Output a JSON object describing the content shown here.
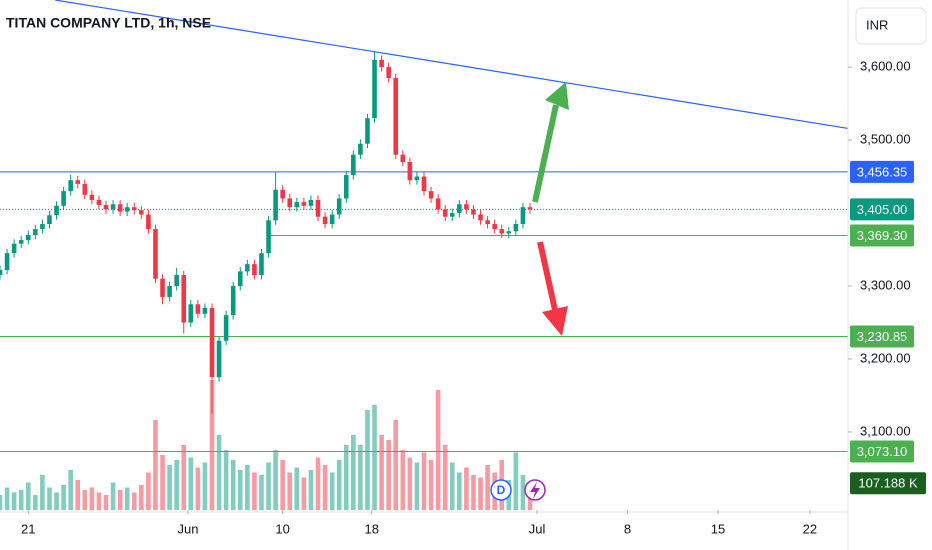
{
  "chart_data": {
    "type": "candlestick",
    "title": "TITAN COMPANY LTD, 1h, NSE",
    "currency": "INR",
    "up_color": "#089981",
    "down_color": "#f23645",
    "xlim": [
      0,
      120
    ],
    "xticks": [
      {
        "value": 4,
        "label": "21"
      },
      {
        "value": 26.6,
        "label": "Jun"
      },
      {
        "value": 40,
        "label": "10"
      },
      {
        "value": 52.6,
        "label": "18"
      },
      {
        "value": 76,
        "label": "Jul"
      },
      {
        "value": 88.8,
        "label": "8"
      },
      {
        "value": 101.6,
        "label": "15"
      },
      {
        "value": 114.6,
        "label": "22"
      }
    ],
    "ylim": [
      2993,
      3692
    ],
    "yticks": [
      {
        "value": 3600,
        "label": "3,600.00"
      },
      {
        "value": 3500,
        "label": "3,500.00"
      },
      {
        "value": 3300,
        "label": "3,300.00"
      },
      {
        "value": 3200,
        "label": "3,200.00"
      },
      {
        "value": 3100,
        "label": "3,100.00"
      }
    ],
    "open": [
      3315,
      3322,
      3345,
      3358,
      3363,
      3370,
      3378,
      3385,
      3397,
      3410,
      3430,
      3445,
      3440,
      3425,
      3418,
      3411,
      3405,
      3412,
      3402,
      3408,
      3404,
      3398,
      3378,
      3310,
      3285,
      3300,
      3315,
      3250,
      3275,
      3262,
      3270,
      3175,
      3225,
      3260,
      3300,
      3320,
      3330,
      3315,
      3345,
      3390,
      3432,
      3420,
      3408,
      3415,
      3410,
      3418,
      3395,
      3385,
      3398,
      3420,
      3452,
      3480,
      3495,
      3530,
      3610,
      3600,
      3585,
      3480,
      3470,
      3445,
      3450,
      3430,
      3420,
      3405,
      3395,
      3400,
      3412,
      3405,
      3398,
      3390,
      3385,
      3378,
      3372,
      3375,
      3385,
      3408
    ],
    "high": [
      3328,
      3351,
      3364,
      3369,
      3376,
      3384,
      3391,
      3403,
      3416,
      3436,
      3452,
      3451,
      3446,
      3431,
      3424,
      3417,
      3418,
      3418,
      3414,
      3414,
      3410,
      3404,
      3384,
      3316,
      3306,
      3325,
      3321,
      3281,
      3281,
      3276,
      3276,
      3231,
      3266,
      3306,
      3326,
      3336,
      3336,
      3351,
      3396,
      3456,
      3438,
      3426,
      3421,
      3421,
      3424,
      3424,
      3401,
      3404,
      3426,
      3458,
      3486,
      3501,
      3536,
      3622,
      3616,
      3606,
      3591,
      3486,
      3476,
      3456,
      3456,
      3436,
      3426,
      3411,
      3406,
      3418,
      3418,
      3411,
      3404,
      3396,
      3391,
      3384,
      3381,
      3391,
      3414,
      3414
    ],
    "low": [
      3309,
      3316,
      3339,
      3352,
      3357,
      3364,
      3372,
      3379,
      3391,
      3404,
      3424,
      3434,
      3419,
      3412,
      3405,
      3399,
      3399,
      3396,
      3396,
      3398,
      3392,
      3372,
      3304,
      3275,
      3279,
      3294,
      3235,
      3244,
      3256,
      3256,
      3125,
      3169,
      3219,
      3254,
      3294,
      3314,
      3309,
      3309,
      3339,
      3384,
      3414,
      3402,
      3402,
      3404,
      3404,
      3389,
      3379,
      3379,
      3392,
      3414,
      3446,
      3474,
      3489,
      3524,
      3594,
      3579,
      3474,
      3464,
      3439,
      3439,
      3424,
      3414,
      3399,
      3389,
      3389,
      3394,
      3399,
      3392,
      3384,
      3379,
      3372,
      3366,
      3366,
      3369,
      3379,
      3399
    ],
    "close": [
      3322,
      3345,
      3358,
      3363,
      3370,
      3378,
      3385,
      3397,
      3410,
      3430,
      3445,
      3440,
      3425,
      3418,
      3411,
      3405,
      3412,
      3402,
      3408,
      3404,
      3398,
      3378,
      3310,
      3285,
      3300,
      3315,
      3250,
      3275,
      3262,
      3270,
      3175,
      3225,
      3260,
      3300,
      3320,
      3330,
      3315,
      3345,
      3390,
      3432,
      3420,
      3408,
      3415,
      3410,
      3418,
      3395,
      3385,
      3398,
      3420,
      3452,
      3480,
      3495,
      3530,
      3610,
      3600,
      3585,
      3480,
      3470,
      3445,
      3450,
      3430,
      3420,
      3405,
      3395,
      3400,
      3412,
      3405,
      3398,
      3390,
      3385,
      3378,
      3372,
      3375,
      3385,
      3408,
      3405
    ],
    "volume": {
      "ylim": [
        0,
        800
      ],
      "values": [
        60,
        90,
        70,
        80,
        110,
        60,
        140,
        90,
        70,
        100,
        160,
        120,
        80,
        90,
        70,
        60,
        110,
        80,
        90,
        70,
        100,
        150,
        360,
        220,
        180,
        200,
        260,
        210,
        170,
        190,
        520,
        300,
        240,
        200,
        160,
        180,
        150,
        140,
        190,
        240,
        200,
        150,
        170,
        130,
        160,
        210,
        180,
        150,
        200,
        260,
        300,
        260,
        400,
        420,
        300,
        280,
        360,
        240,
        210,
        190,
        230,
        200,
        480,
        260,
        190,
        150,
        170,
        140,
        130,
        180,
        150,
        200,
        120,
        230,
        140,
        107.188
      ]
    },
    "last_volume": {
      "value": 107.188,
      "label": "107.188 K"
    },
    "trendline": {
      "color": "#2962ff",
      "points": [
        [
          7.8,
          3692
        ],
        [
          120,
          3516
        ]
      ]
    },
    "price_lines": [
      {
        "value": 3456.35,
        "label": "3,456.35",
        "color": "#2962ff",
        "style": "solid",
        "start": 0
      },
      {
        "value": 3405,
        "label": "3,405.00",
        "color": "#089981",
        "style": "dotted",
        "start": 0
      },
      {
        "value": 3369.3,
        "label": "3,369.30",
        "color": "#4caf50",
        "style": "solid",
        "start": 38.2
      },
      {
        "value": 3230.85,
        "label": "3,230.85",
        "color": "#4caf50",
        "style": "solid",
        "start": 0
      },
      {
        "value": 3073.1,
        "label": "3,073.10",
        "color": "#4caf50",
        "style": "solid",
        "start": 0
      }
    ],
    "badge": "D"
  }
}
